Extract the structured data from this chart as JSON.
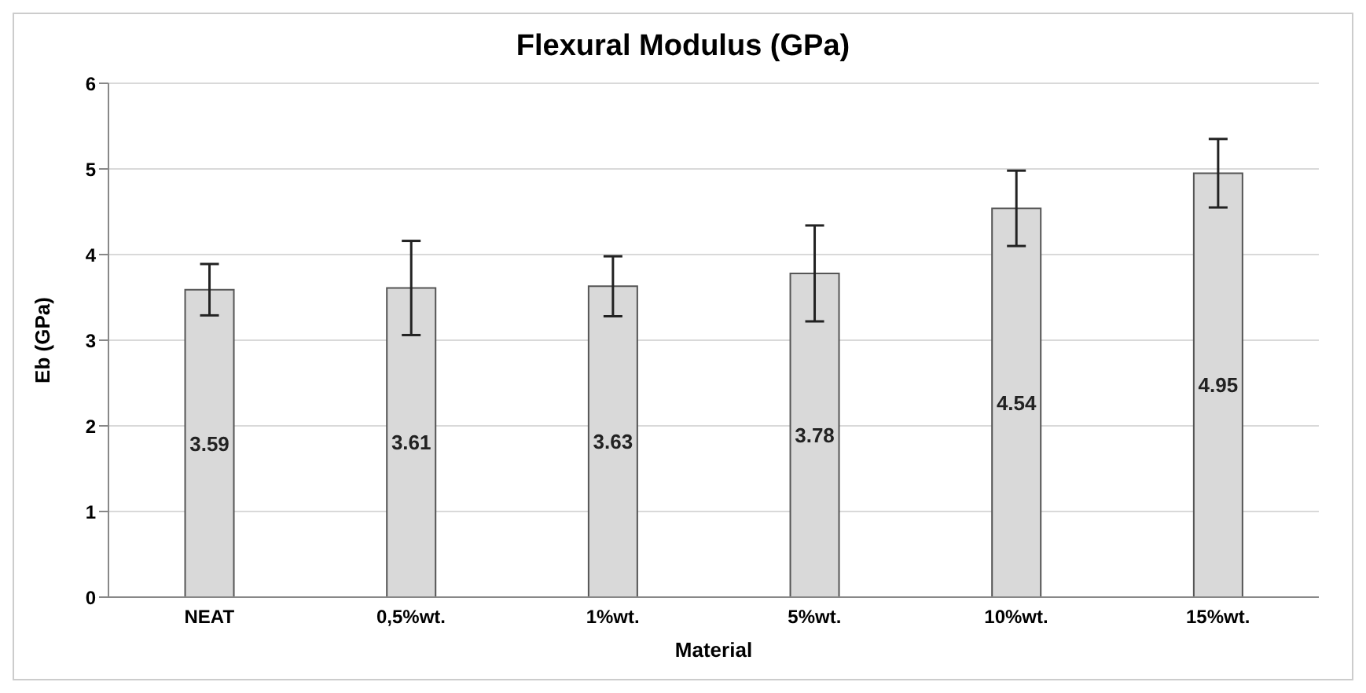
{
  "chart_data": {
    "type": "bar",
    "title": "Flexural Modulus (GPa)",
    "xlabel": "Material",
    "ylabel": "Eb (GPa)",
    "categories": [
      "NEAT",
      "0,5%wt.",
      "1%wt.",
      "5%wt.",
      "10%wt.",
      "15%wt."
    ],
    "values": [
      3.59,
      3.61,
      3.63,
      3.78,
      4.54,
      4.95
    ],
    "errors": [
      0.3,
      0.55,
      0.35,
      0.56,
      0.44,
      0.4
    ],
    "color": "#d9d9d9",
    "ylim": [
      0,
      6
    ],
    "yticks": [
      0,
      1,
      2,
      3,
      4,
      5,
      6
    ],
    "grid": "y",
    "data_labels": true
  }
}
